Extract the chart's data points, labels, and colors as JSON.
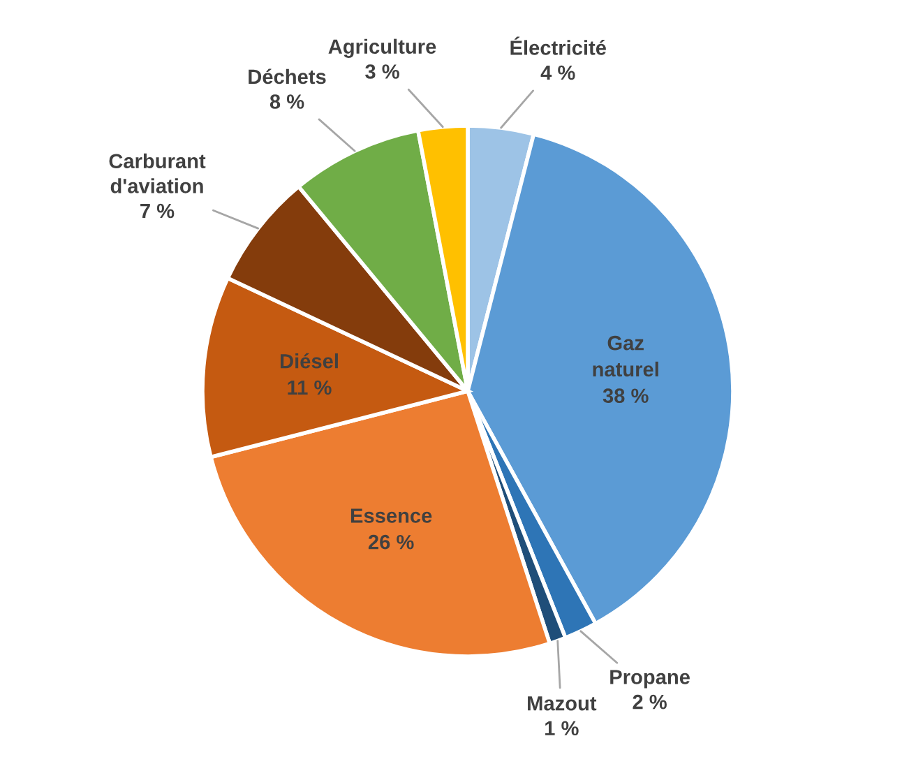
{
  "chart_data": {
    "type": "pie",
    "categories": [
      "Électricité",
      "Gaz naturel",
      "Propane",
      "Mazout",
      "Essence",
      "Diésel",
      "Carburant d'aviation",
      "Déchets",
      "Agriculture"
    ],
    "values": [
      4,
      38,
      2,
      1,
      26,
      11,
      7,
      8,
      3
    ],
    "colors": [
      "#9dc3e6",
      "#5b9bd5",
      "#2e75b6",
      "#1f4e79",
      "#ed7d31",
      "#c55a11",
      "#843c0c",
      "#70ad47",
      "#ffc000"
    ],
    "value_labels": [
      "4 %",
      "38 %",
      "2 %",
      "1 %",
      "26 %",
      "11 %",
      "7 %",
      "8 %",
      "3 %"
    ]
  }
}
